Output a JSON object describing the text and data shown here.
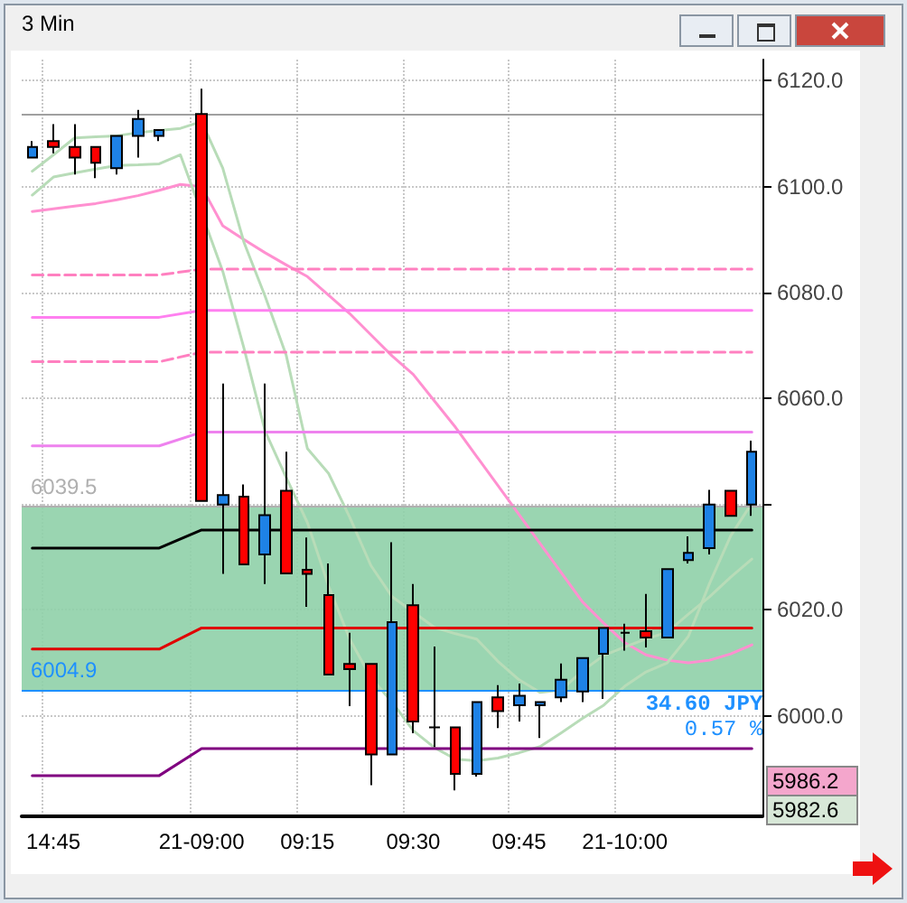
{
  "chart_data": {
    "type": "candlestick",
    "title": "3 Min",
    "categories": [
      null,
      "14:45",
      null,
      null,
      null,
      null,
      null,
      null,
      "21-09:00",
      null,
      null,
      null,
      null,
      "09:15",
      null,
      null,
      null,
      null,
      "09:30",
      null,
      null,
      null,
      null,
      "09:45",
      null,
      null,
      null,
      null,
      "21-10:00",
      null,
      null,
      null,
      null,
      null,
      null
    ],
    "ohlc": [
      [
        6105.5,
        6108.6,
        6105.5,
        6107.5
      ],
      [
        6108.6,
        6111.8,
        6106.3,
        6107.5
      ],
      [
        6107.5,
        6111.8,
        6102.3,
        6105.5
      ],
      [
        6107.5,
        6107.5,
        6101.6,
        6104.5
      ],
      [
        6103.5,
        6109.6,
        6102.3,
        6109.6
      ],
      [
        6109.6,
        6114.5,
        6105.5,
        6112.8
      ],
      [
        6109.6,
        6110.7,
        6108.6,
        6110.7
      ],
      null,
      [
        6113.7,
        6118.5,
        6040.6,
        6040.6
      ],
      [
        6039.9,
        6062.8,
        6026.8,
        6041.7
      ],
      [
        6041.4,
        6043.7,
        6028.6,
        6028.6
      ],
      [
        6030.5,
        6062.8,
        6024.9,
        6037.9
      ],
      [
        6042.5,
        6049.9,
        6026.9,
        6026.9
      ],
      [
        6027.6,
        6033.7,
        6020.6,
        6026.8
      ],
      [
        6022.8,
        6028.8,
        6007.8,
        6007.8
      ],
      [
        6009.8,
        6015.7,
        6001.8,
        6008.8
      ],
      [
        6009.8,
        6009.8,
        5986.9,
        5992.7
      ],
      [
        5992.7,
        6032.8,
        5992.7,
        6017.7
      ],
      [
        6020.9,
        6024.9,
        5996.7,
        5998.9
      ],
      [
        5997.8,
        6013.1,
        5994.1,
        5997.8
      ],
      [
        5997.8,
        5997.8,
        5985.9,
        5989.0
      ],
      [
        5989.0,
        6002.6,
        5988.5,
        6002.6
      ],
      [
        6003.5,
        6005.8,
        5997.7,
        6000.9
      ],
      [
        6002.0,
        6006.1,
        5998.9,
        6003.8
      ],
      [
        6002.0,
        6002.6,
        5995.8,
        6002.6
      ],
      [
        6003.5,
        6009.9,
        6002.6,
        6006.8
      ],
      [
        6004.6,
        6010.9,
        6002.6,
        6010.9
      ],
      [
        6011.7,
        6016.6,
        6003.2,
        6016.6
      ],
      [
        6015.7,
        6017.4,
        6012.3,
        6015.7
      ],
      [
        6016.0,
        6023.0,
        6012.9,
        6014.8
      ],
      [
        6014.8,
        6027.7,
        6014.8,
        6027.7
      ],
      [
        6029.4,
        6033.9,
        6028.8,
        6030.8
      ],
      [
        6031.7,
        6042.7,
        6030.5,
        6039.9
      ],
      [
        6042.5,
        6042.5,
        6037.8,
        6037.8
      ],
      [
        6039.9,
        6052.0,
        6037.8,
        6049.9
      ]
    ],
    "colors": [
      "#1e82e6",
      "#ff0000",
      "#ff0000",
      "#ff0000",
      "#1e82e6",
      "#1e82e6",
      "#1e82e6",
      null,
      "#ff0000",
      "#1e82e6",
      "#ff0000",
      "#1e82e6",
      "#ff0000",
      "#ff0000",
      "#ff0000",
      "#ff0000",
      "#ff0000",
      "#1e82e6",
      "#ff0000",
      "#000000",
      "#ff0000",
      "#1e82e6",
      "#ff0000",
      "#1e82e6",
      "#1e82e6",
      "#1e82e6",
      "#1e82e6",
      "#1e82e6",
      "#000000",
      "#ff0000",
      "#1e82e6",
      "#1e82e6",
      "#1e82e6",
      "#ff0000",
      "#1e82e6"
    ],
    "series": [
      {
        "type": "line",
        "color": "#ff90d0",
        "values": [
          6095.3,
          6095.8,
          6096.3,
          6096.8,
          6097.5,
          6098.3,
          6099.3,
          6100.4,
          6100.0,
          6092.6,
          6090.0,
          6087.5,
          6085.2,
          6083.0,
          6079.5,
          6076.0,
          6072.0,
          6068.0,
          6064.5,
          6059.5,
          6054.5,
          6049.0,
          6043.5,
          6038.0,
          6032.5,
          6027.0,
          6021.5,
          6017.5,
          6013.8,
          6011.5,
          6010.5,
          6010.0,
          6010.5,
          6011.7,
          6013.4
        ]
      },
      {
        "type": "line",
        "color": "#b8dcb8",
        "values": [
          6102.9,
          6106.0,
          6109.2,
          6109.4,
          6109.6,
          6110.2,
          6110.6,
          6111.0,
          6112.3,
          6103.5,
          6089.5,
          6079.3,
          6068.1,
          6050.5,
          6045.8,
          6037.5,
          6028.4,
          6022.5,
          6019.6,
          6016.7,
          6015.5,
          6014.5,
          6010.3,
          6006.8,
          6004.4,
          6004.9,
          6008.5,
          6011.4,
          6013.0,
          6014.5,
          6015.8,
          6019.2,
          6022.5,
          6026.2,
          6029.6
        ]
      },
      {
        "type": "line",
        "color": "#b8dcb8",
        "values": [
          6098.4,
          6101.8,
          6102.6,
          6103.3,
          6104.0,
          6104.1,
          6104.3,
          6106.0,
          null,
          6084.0,
          6069.5,
          6053.8,
          6045.0,
          6036.5,
          6024.5,
          6014.5,
          6007.2,
          6002.6,
          5997.2,
          5994.0,
          5991.8,
          5991.5,
          5992.0,
          5993.0,
          5994.2,
          5996.8,
          5999.5,
          6002.0,
          6005.6,
          6008.3,
          6010.0,
          6015.0,
          6025.0,
          6034.0,
          6040.2
        ]
      },
      {
        "type": "line",
        "color": "#ff80c0",
        "line_style": "dashed",
        "values": [
          6083.3,
          6083.3,
          6083.3,
          6083.3,
          6083.3,
          6083.3,
          6083.3,
          null,
          6084.4,
          6084.4,
          6084.4,
          6084.4,
          6084.4,
          6084.4,
          6084.4,
          6084.4,
          6084.4,
          6084.4,
          6084.4,
          6084.4,
          6084.4,
          6084.4,
          6084.4,
          6084.4,
          6084.4,
          6084.4,
          6084.4,
          6084.4,
          6084.4,
          6084.4,
          6084.4,
          6084.4,
          6084.4,
          6084.4,
          6084.4
        ]
      },
      {
        "type": "line",
        "color": "#ff80f0",
        "values": [
          6075.3,
          6075.3,
          6075.3,
          6075.3,
          6075.3,
          6075.3,
          6075.3,
          null,
          6076.6,
          6076.6,
          6076.6,
          6076.6,
          6076.6,
          6076.6,
          6076.6,
          6076.6,
          6076.6,
          6076.6,
          6076.6,
          6076.6,
          6076.6,
          6076.6,
          6076.6,
          6076.6,
          6076.6,
          6076.6,
          6076.6,
          6076.6,
          6076.6,
          6076.6,
          6076.6,
          6076.6,
          6076.6,
          6076.6,
          6076.6
        ]
      },
      {
        "type": "line",
        "color": "#ff80c0",
        "line_style": "dashed",
        "values": [
          6066.9,
          6066.9,
          6066.9,
          6066.9,
          6066.9,
          6066.9,
          6066.9,
          null,
          6068.7,
          6068.7,
          6068.7,
          6068.7,
          6068.7,
          6068.7,
          6068.7,
          6068.7,
          6068.7,
          6068.7,
          6068.7,
          6068.7,
          6068.7,
          6068.7,
          6068.7,
          6068.7,
          6068.7,
          6068.7,
          6068.7,
          6068.7,
          6068.7,
          6068.7,
          6068.7,
          6068.7,
          6068.7,
          6068.7,
          6068.7
        ]
      },
      {
        "type": "line",
        "color": "#ee82ee",
        "values": [
          6051.0,
          6051.0,
          6051.0,
          6051.0,
          6051.0,
          6051.0,
          6051.0,
          null,
          6053.6,
          6053.6,
          6053.6,
          6053.6,
          6053.6,
          6053.6,
          6053.6,
          6053.6,
          6053.6,
          6053.6,
          6053.6,
          6053.6,
          6053.6,
          6053.6,
          6053.6,
          6053.6,
          6053.6,
          6053.6,
          6053.6,
          6053.6,
          6053.6,
          6053.6,
          6053.6,
          6053.6,
          6053.6,
          6053.6,
          6053.6
        ]
      },
      {
        "type": "line",
        "color": "#000000",
        "values": [
          6031.7,
          6031.7,
          6031.7,
          6031.7,
          6031.7,
          6031.7,
          6031.7,
          null,
          6035.1,
          6035.1,
          6035.1,
          6035.1,
          6035.1,
          6035.1,
          6035.1,
          6035.1,
          6035.1,
          6035.1,
          6035.1,
          6035.1,
          6035.1,
          6035.1,
          6035.1,
          6035.1,
          6035.1,
          6035.1,
          6035.1,
          6035.1,
          6035.1,
          6035.1,
          6035.1,
          6035.1,
          6035.1,
          6035.1,
          6035.1
        ]
      },
      {
        "type": "line",
        "color": "#e00000",
        "values": [
          6012.6,
          6012.6,
          6012.6,
          6012.6,
          6012.6,
          6012.6,
          6012.6,
          null,
          6016.6,
          6016.6,
          6016.6,
          6016.6,
          6016.6,
          6016.6,
          6016.6,
          6016.6,
          6016.6,
          6016.6,
          6016.6,
          6016.6,
          6016.6,
          6016.6,
          6016.6,
          6016.6,
          6016.6,
          6016.6,
          6016.6,
          6016.6,
          6016.6,
          6016.6,
          6016.6,
          6016.6,
          6016.6,
          6016.6,
          6016.6
        ]
      },
      {
        "type": "line",
        "color": "#800080",
        "values": [
          5988.7,
          5988.7,
          5988.7,
          5988.7,
          5988.7,
          5988.7,
          5988.7,
          null,
          5993.8,
          5993.8,
          5993.8,
          5993.8,
          5993.8,
          5993.8,
          5993.8,
          5993.8,
          5993.8,
          5993.8,
          5993.8,
          5993.8,
          5993.8,
          5993.8,
          5993.8,
          5993.8,
          5993.8,
          5993.8,
          5993.8,
          5993.8,
          5993.8,
          5993.8,
          5993.8,
          5993.8,
          5993.8,
          5993.8,
          5993.8
        ]
      }
    ],
    "ref_lines": [
      {
        "axis": "y",
        "value": 6113.7,
        "color": "#a0a0a0"
      },
      {
        "axis": "y",
        "value": 6039.5,
        "label": "6039.5",
        "color": "#b0b0b0"
      },
      {
        "axis": "y",
        "value": 6004.9,
        "label": "6004.9",
        "color": "#1e90ff"
      }
    ],
    "bands": [
      {
        "axis": "y",
        "from": 6004.9,
        "to": 6039.5,
        "label": "34.60 JPY",
        "color": "#8fd0a8"
      }
    ],
    "annotations": [
      "0.57 %",
      "5986.2",
      "5982.6"
    ],
    "ylim": [
      5981,
      6124
    ],
    "yticks": [
      {
        "value": 6000,
        "label": "6000.0"
      },
      {
        "value": 6020,
        "label": "6020.0"
      },
      {
        "value": 6040,
        "label": null
      },
      {
        "value": 6060,
        "label": "6060.0"
      },
      {
        "value": 6080,
        "label": "6080.0"
      },
      {
        "value": 6100,
        "label": "6100.0"
      },
      {
        "value": 6120,
        "label": "6120.0"
      }
    ],
    "grid": true,
    "marker": "none"
  }
}
